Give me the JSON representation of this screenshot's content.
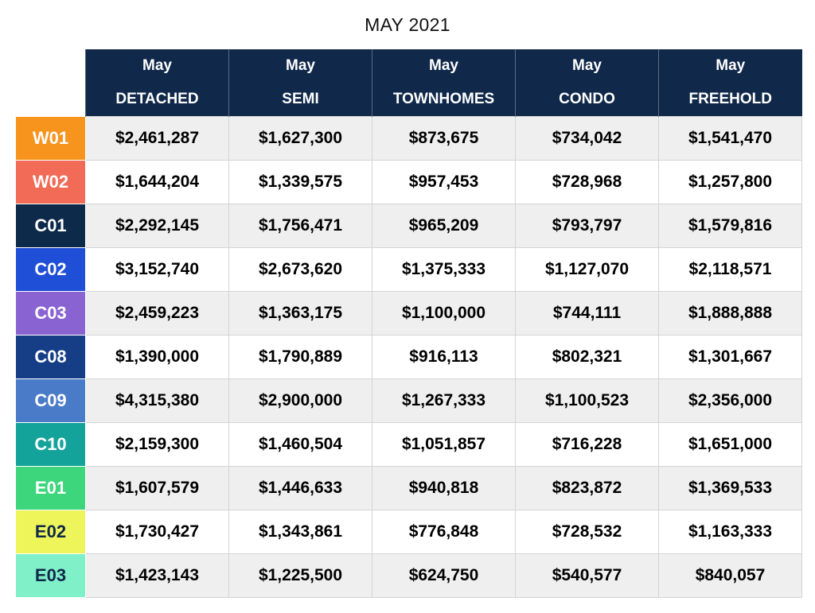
{
  "title": "MAY 2021",
  "header_top": [
    "May",
    "May",
    "May",
    "May",
    "May"
  ],
  "header_bottom": [
    "DETACHED",
    "SEMI",
    "TOWNHOMES",
    "CONDO",
    "FREEHOLD"
  ],
  "rows": [
    {
      "district": "W01",
      "color": "#f7941d",
      "text_color": "#ffffff",
      "values": [
        "$2,461,287",
        "$1,627,300",
        "$873,675",
        "$734,042",
        "$1,541,470"
      ]
    },
    {
      "district": "W02",
      "color": "#f26b56",
      "text_color": "#ffffff",
      "values": [
        "$1,644,204",
        "$1,339,575",
        "$957,453",
        "$728,968",
        "$1,257,800"
      ]
    },
    {
      "district": "C01",
      "color": "#0d2a4b",
      "text_color": "#ffffff",
      "values": [
        "$2,292,145",
        "$1,756,471",
        "$965,209",
        "$793,797",
        "$1,579,816"
      ]
    },
    {
      "district": "C02",
      "color": "#1f4fd6",
      "text_color": "#ffffff",
      "values": [
        "$3,152,740",
        "$2,673,620",
        "$1,375,333",
        "$1,127,070",
        "$2,118,571"
      ]
    },
    {
      "district": "C03",
      "color": "#8a63d2",
      "text_color": "#ffffff",
      "values": [
        "$2,459,223",
        "$1,363,175",
        "$1,100,000",
        "$744,111",
        "$1,888,888"
      ]
    },
    {
      "district": "C08",
      "color": "#163e86",
      "text_color": "#ffffff",
      "values": [
        "$1,390,000",
        "$1,790,889",
        "$916,113",
        "$802,321",
        "$1,301,667"
      ]
    },
    {
      "district": "C09",
      "color": "#4a7bc8",
      "text_color": "#ffffff",
      "values": [
        "$4,315,380",
        "$2,900,000",
        "$1,267,333",
        "$1,100,523",
        "$2,356,000"
      ]
    },
    {
      "district": "C10",
      "color": "#14a39a",
      "text_color": "#ffffff",
      "values": [
        "$2,159,300",
        "$1,460,504",
        "$1,051,857",
        "$716,228",
        "$1,651,000"
      ]
    },
    {
      "district": "E01",
      "color": "#3ed67d",
      "text_color": "#ffffff",
      "values": [
        "$1,607,579",
        "$1,446,633",
        "$940,818",
        "$823,872",
        "$1,369,533"
      ]
    },
    {
      "district": "E02",
      "color": "#eef55a",
      "text_color": "#10284a",
      "values": [
        "$1,730,427",
        "$1,343,861",
        "$776,848",
        "$728,532",
        "$1,163,333"
      ]
    },
    {
      "district": "E03",
      "color": "#7ff0c8",
      "text_color": "#10284a",
      "values": [
        "$1,423,143",
        "$1,225,500",
        "$624,750",
        "$540,577",
        "$840,057"
      ]
    }
  ]
}
